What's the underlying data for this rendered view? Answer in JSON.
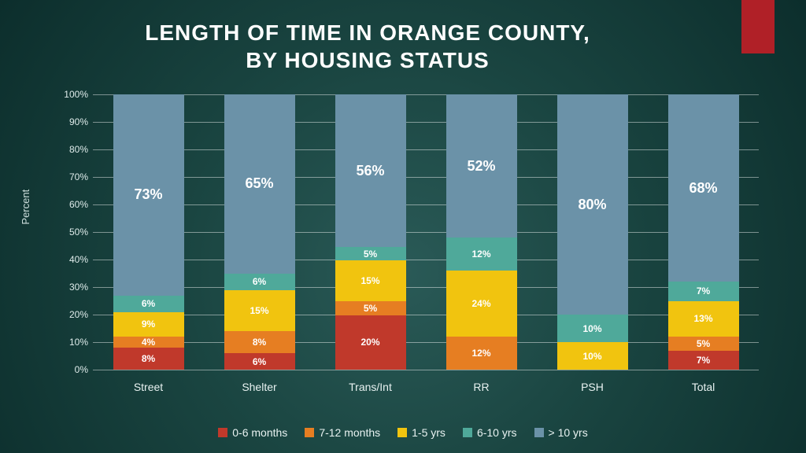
{
  "title_line1": "LENGTH OF TIME IN ORANGE COUNTY,",
  "title_line2": "BY HOUSING STATUS",
  "accent_color": "#b02027",
  "chart": {
    "type": "stacked-bar-percent",
    "y_axis": {
      "label": "Percent",
      "min": 0,
      "max": 100,
      "step": 10,
      "suffix": "%"
    },
    "series": [
      {
        "key": "s0",
        "label": "0-6 months",
        "color": "#c0392b"
      },
      {
        "key": "s1",
        "label": "7-12 months",
        "color": "#e67e22"
      },
      {
        "key": "s2",
        "label": "1-5 yrs",
        "color": "#f1c40f"
      },
      {
        "key": "s3",
        "label": "6-10 yrs",
        "color": "#4fa99a"
      },
      {
        "key": "s4",
        "label": "> 10 yrs",
        "color": "#6b92a8"
      }
    ],
    "categories": [
      {
        "label": "Street",
        "values": [
          8,
          4,
          9,
          6,
          73
        ],
        "show_labels": [
          true,
          true,
          true,
          true,
          true
        ]
      },
      {
        "label": "Shelter",
        "values": [
          6,
          8,
          15,
          6,
          65
        ],
        "show_labels": [
          true,
          true,
          true,
          true,
          true
        ]
      },
      {
        "label": "Trans/Int",
        "values": [
          20,
          5,
          15,
          5,
          56
        ],
        "show_labels": [
          true,
          true,
          true,
          true,
          true
        ]
      },
      {
        "label": "RR",
        "values": [
          0,
          12,
          24,
          12,
          52
        ],
        "show_labels": [
          false,
          true,
          true,
          true,
          true
        ]
      },
      {
        "label": "PSH",
        "values": [
          0,
          0,
          10,
          10,
          80
        ],
        "show_labels": [
          false,
          false,
          true,
          true,
          true
        ]
      },
      {
        "label": "Total",
        "values": [
          7,
          5,
          13,
          7,
          68
        ],
        "show_labels": [
          true,
          true,
          true,
          true,
          true
        ]
      }
    ],
    "grid_color": "rgba(255,255,255,.45)",
    "big_label_threshold": 40
  }
}
